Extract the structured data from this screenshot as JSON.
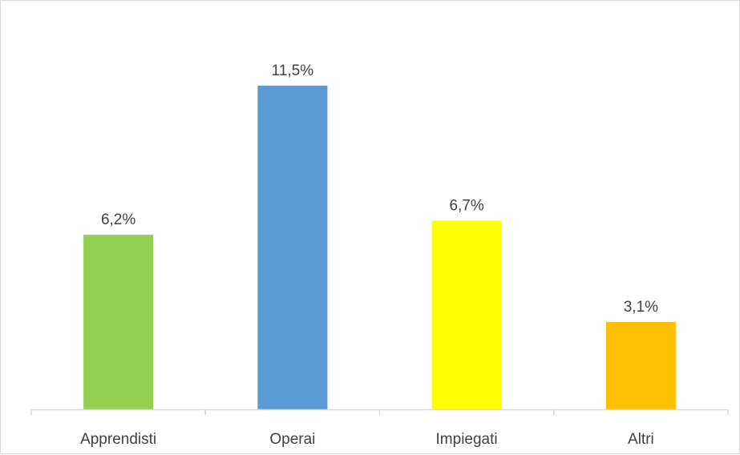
{
  "chart_data": {
    "type": "bar",
    "title": "",
    "xlabel": "",
    "ylabel": "",
    "categories": [
      "Apprendisti",
      "Operai",
      "Impiegati",
      "Altri"
    ],
    "values": [
      6.2,
      11.5,
      6.7,
      3.1
    ],
    "value_labels": [
      "6,2%",
      "11,5%",
      "6,7%",
      "3,1%"
    ],
    "colors": [
      "#92d050",
      "#5b9bd5",
      "#ffff00",
      "#ffc000"
    ],
    "ylim": [
      0,
      13.2
    ],
    "grid": false,
    "legend": "none",
    "axis_color": "#d9d9d9",
    "text_color": "#404040"
  }
}
